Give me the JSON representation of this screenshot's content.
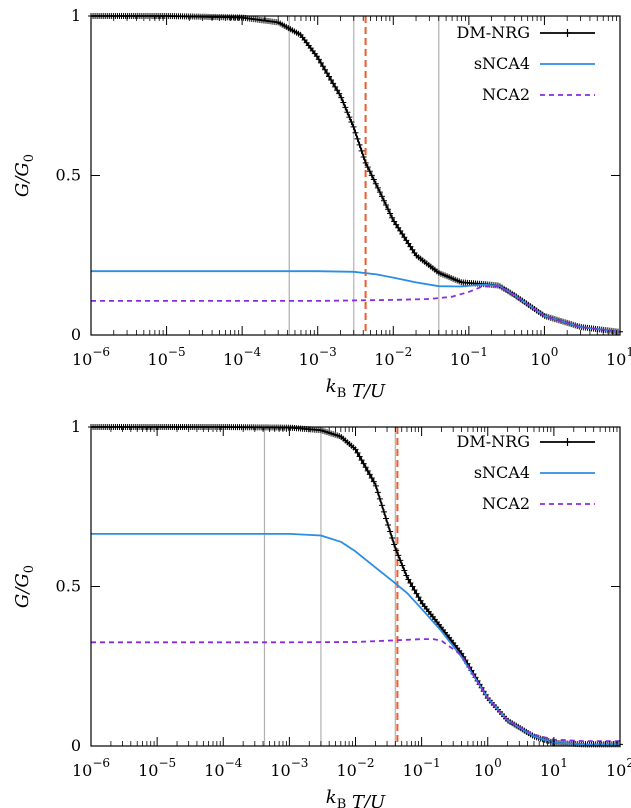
{
  "chart_data": [
    {
      "type": "line",
      "xscale": "log",
      "xlim": [
        1e-06,
        10
      ],
      "ylim": [
        0,
        1
      ],
      "xlabel": "k_B T/U",
      "ylabel": "G/G_0",
      "x_ticks": [
        1e-06,
        1e-05,
        0.0001,
        0.001,
        0.01,
        0.1,
        1,
        10
      ],
      "x_tick_labels": [
        {
          "base": "10",
          "exp": "−6"
        },
        {
          "base": "10",
          "exp": "−5"
        },
        {
          "base": "10",
          "exp": "−4"
        },
        {
          "base": "10",
          "exp": "−3"
        },
        {
          "base": "10",
          "exp": "−2"
        },
        {
          "base": "10",
          "exp": "−1"
        },
        {
          "base": "10",
          "exp": "0"
        },
        {
          "base": "10",
          "exp": "1"
        }
      ],
      "y_ticks": [
        0,
        0.5,
        1
      ],
      "y_tick_labels": [
        "0",
        "0.5",
        "1"
      ],
      "grid": false,
      "legend": "top-right",
      "vlines": [
        {
          "x": 0.00042,
          "style": "solid",
          "color": "#b0b0b0"
        },
        {
          "x": 0.003,
          "style": "solid",
          "color": "#b0b0b0"
        },
        {
          "x": 0.04,
          "style": "solid",
          "color": "#b0b0b0"
        },
        {
          "x": 0.0043,
          "style": "dashed",
          "color": "#f05a28"
        }
      ],
      "series": [
        {
          "name": "DM-NRG",
          "color": "#000000",
          "style": "solid-marker",
          "x": [
            1e-06,
            1e-05,
            0.0001,
            0.0003,
            0.0006,
            0.001,
            0.002,
            0.003,
            0.0043,
            0.006,
            0.01,
            0.02,
            0.04,
            0.08,
            0.15,
            0.25,
            0.4,
            1,
            3,
            10
          ],
          "y": [
            1,
            1,
            0.995,
            0.98,
            0.94,
            0.87,
            0.75,
            0.65,
            0.54,
            0.47,
            0.36,
            0.25,
            0.195,
            0.165,
            0.16,
            0.155,
            0.125,
            0.06,
            0.025,
            0.01
          ]
        },
        {
          "name": "sNCA4",
          "color": "#2a8de6",
          "style": "solid",
          "x": [
            1e-06,
            0.0001,
            0.001,
            0.003,
            0.006,
            0.01,
            0.02,
            0.04,
            0.08,
            0.15,
            0.25,
            0.4,
            1,
            3,
            10
          ],
          "y": [
            0.2,
            0.2,
            0.2,
            0.198,
            0.19,
            0.18,
            0.165,
            0.153,
            0.152,
            0.158,
            0.155,
            0.125,
            0.06,
            0.025,
            0.01
          ]
        },
        {
          "name": "NCA2",
          "color": "#8a2be2",
          "style": "dashed",
          "x": [
            1e-06,
            0.001,
            0.01,
            0.03,
            0.06,
            0.1,
            0.15,
            0.25,
            0.4,
            1,
            3,
            10
          ],
          "y": [
            0.107,
            0.107,
            0.11,
            0.113,
            0.12,
            0.135,
            0.152,
            0.153,
            0.125,
            0.06,
            0.025,
            0.01
          ]
        }
      ]
    },
    {
      "type": "line",
      "xscale": "log",
      "xlim": [
        1e-06,
        100
      ],
      "ylim": [
        0,
        1
      ],
      "xlabel": "k_B T/U",
      "ylabel": "G/G_0",
      "x_ticks": [
        1e-06,
        1e-05,
        0.0001,
        0.001,
        0.01,
        0.1,
        1,
        10,
        100
      ],
      "x_tick_labels": [
        {
          "base": "10",
          "exp": "−6"
        },
        {
          "base": "10",
          "exp": "−5"
        },
        {
          "base": "10",
          "exp": "−4"
        },
        {
          "base": "10",
          "exp": "−3"
        },
        {
          "base": "10",
          "exp": "−2"
        },
        {
          "base": "10",
          "exp": "−1"
        },
        {
          "base": "10",
          "exp": "0"
        },
        {
          "base": "10",
          "exp": "1"
        },
        {
          "base": "10",
          "exp": "2"
        }
      ],
      "y_ticks": [
        0,
        0.5,
        1
      ],
      "y_tick_labels": [
        "0",
        "0.5",
        "1"
      ],
      "grid": false,
      "legend": "top-right",
      "vlines": [
        {
          "x": 0.00042,
          "style": "solid",
          "color": "#b0b0b0"
        },
        {
          "x": 0.003,
          "style": "solid",
          "color": "#b0b0b0"
        },
        {
          "x": 0.04,
          "style": "solid",
          "color": "#b0b0b0"
        },
        {
          "x": 0.043,
          "style": "dashed",
          "color": "#f05a28"
        }
      ],
      "series": [
        {
          "name": "DM-NRG",
          "color": "#000000",
          "style": "solid-marker",
          "x": [
            1e-06,
            0.0001,
            0.001,
            0.003,
            0.006,
            0.01,
            0.02,
            0.04,
            0.06,
            0.1,
            0.2,
            0.4,
            1,
            2,
            5,
            10,
            30,
            100
          ],
          "y": [
            1,
            1,
            0.998,
            0.99,
            0.97,
            0.93,
            0.82,
            0.62,
            0.53,
            0.45,
            0.37,
            0.29,
            0.15,
            0.08,
            0.03,
            0.01,
            0.005,
            0.005
          ]
        },
        {
          "name": "sNCA4",
          "color": "#2a8de6",
          "style": "solid",
          "x": [
            1e-06,
            0.0001,
            0.001,
            0.003,
            0.006,
            0.01,
            0.02,
            0.04,
            0.06,
            0.1,
            0.2,
            0.4,
            1,
            2,
            5,
            10,
            30,
            100
          ],
          "y": [
            0.665,
            0.665,
            0.665,
            0.66,
            0.64,
            0.61,
            0.56,
            0.51,
            0.48,
            0.43,
            0.36,
            0.28,
            0.15,
            0.08,
            0.03,
            0.01,
            0.005,
            0.005
          ]
        },
        {
          "name": "NCA2",
          "color": "#8a2be2",
          "style": "dashed",
          "x": [
            1e-06,
            0.001,
            0.01,
            0.03,
            0.06,
            0.1,
            0.15,
            0.2,
            0.4,
            1,
            2,
            5,
            10,
            30,
            100
          ],
          "y": [
            0.325,
            0.325,
            0.326,
            0.33,
            0.333,
            0.335,
            0.335,
            0.33,
            0.285,
            0.15,
            0.08,
            0.035,
            0.02,
            0.015,
            0.015
          ]
        }
      ]
    }
  ]
}
